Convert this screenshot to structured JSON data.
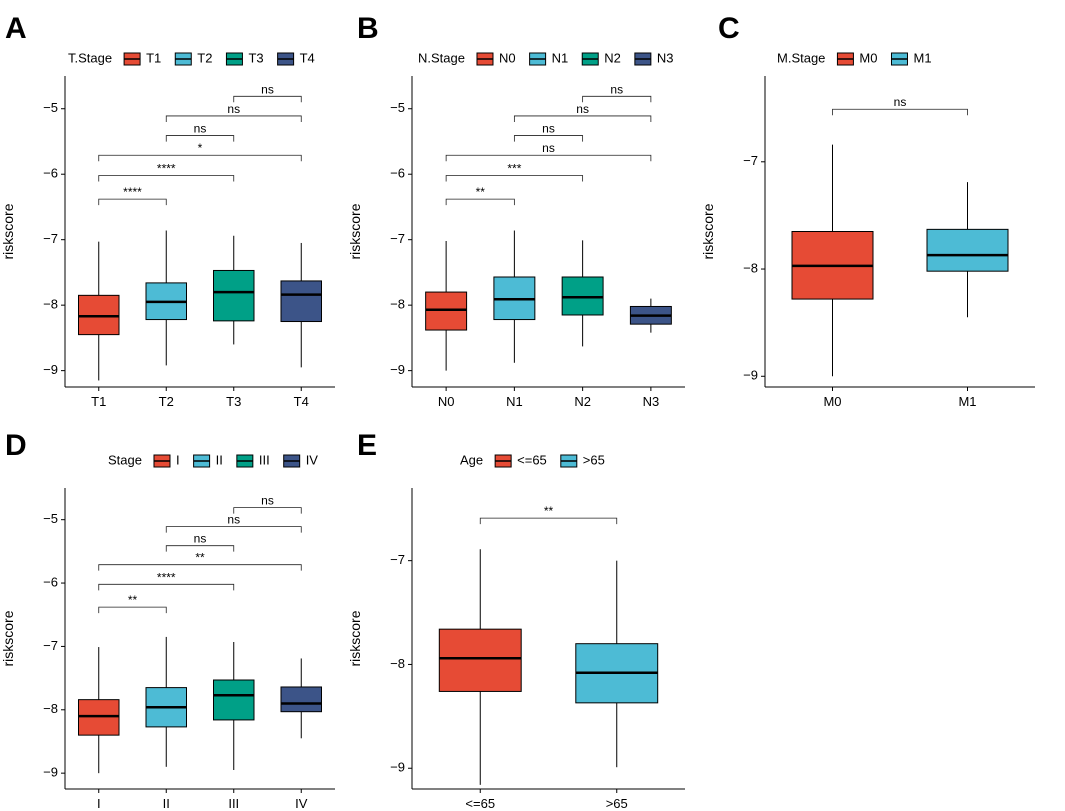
{
  "chart_data": [
    {
      "panel": "A",
      "type": "box",
      "legend_title": "T.Stage",
      "categories": [
        "T1",
        "T2",
        "T3",
        "T4"
      ],
      "colors": [
        "#e64b35",
        "#4dbbd5",
        "#00a087",
        "#3c5488"
      ],
      "ylabel": "riskscore",
      "ylim": [
        -9.25,
        -4.5
      ],
      "yticks": [
        -9,
        -8,
        -7,
        -6,
        -5
      ],
      "boxes": [
        {
          "min": -9.15,
          "q1": -8.45,
          "median": -8.17,
          "q3": -7.85,
          "max": -7.03
        },
        {
          "min": -8.92,
          "q1": -8.22,
          "median": -7.95,
          "q3": -7.66,
          "max": -6.86
        },
        {
          "min": -8.6,
          "q1": -8.24,
          "median": -7.8,
          "q3": -7.47,
          "max": -6.94
        },
        {
          "min": -8.95,
          "q1": -8.25,
          "median": -7.84,
          "q3": -7.63,
          "max": -7.05
        }
      ],
      "comparisons": [
        {
          "from": 2,
          "to": 3,
          "y": -4.81,
          "label": "ns"
        },
        {
          "from": 1,
          "to": 3,
          "y": -5.11,
          "label": "ns"
        },
        {
          "from": 1,
          "to": 2,
          "y": -5.41,
          "label": "ns"
        },
        {
          "from": 0,
          "to": 3,
          "y": -5.71,
          "label": "*"
        },
        {
          "from": 0,
          "to": 2,
          "y": -6.02,
          "label": "****"
        },
        {
          "from": 0,
          "to": 1,
          "y": -6.38,
          "label": "****"
        }
      ]
    },
    {
      "panel": "B",
      "type": "box",
      "legend_title": "N.Stage",
      "categories": [
        "N0",
        "N1",
        "N2",
        "N3"
      ],
      "colors": [
        "#e64b35",
        "#4dbbd5",
        "#00a087",
        "#3c5488"
      ],
      "ylabel": "riskscore",
      "ylim": [
        -9.25,
        -4.5
      ],
      "yticks": [
        -9,
        -8,
        -7,
        -6,
        -5
      ],
      "boxes": [
        {
          "min": -9.0,
          "q1": -8.38,
          "median": -8.07,
          "q3": -7.8,
          "max": -7.02
        },
        {
          "min": -8.88,
          "q1": -8.22,
          "median": -7.91,
          "q3": -7.57,
          "max": -6.86
        },
        {
          "min": -8.63,
          "q1": -8.15,
          "median": -7.88,
          "q3": -7.57,
          "max": -7.01
        },
        {
          "min": -8.42,
          "q1": -8.29,
          "median": -8.16,
          "q3": -8.02,
          "max": -7.9
        }
      ],
      "comparisons": [
        {
          "from": 2,
          "to": 3,
          "y": -4.81,
          "label": "ns"
        },
        {
          "from": 1,
          "to": 3,
          "y": -5.11,
          "label": "ns"
        },
        {
          "from": 1,
          "to": 2,
          "y": -5.41,
          "label": "ns"
        },
        {
          "from": 0,
          "to": 3,
          "y": -5.71,
          "label": "ns"
        },
        {
          "from": 0,
          "to": 2,
          "y": -6.02,
          "label": "***"
        },
        {
          "from": 0,
          "to": 1,
          "y": -6.38,
          "label": "**"
        }
      ]
    },
    {
      "panel": "C",
      "type": "box",
      "legend_title": "M.Stage",
      "categories": [
        "M0",
        "M1"
      ],
      "colors": [
        "#e64b35",
        "#4dbbd5"
      ],
      "ylabel": "riskscore",
      "ylim": [
        -9.1,
        -6.2
      ],
      "yticks": [
        -9,
        -8,
        -7
      ],
      "boxes": [
        {
          "min": -9.0,
          "q1": -8.28,
          "median": -7.97,
          "q3": -7.65,
          "max": -6.84
        },
        {
          "min": -8.45,
          "q1": -8.02,
          "median": -7.87,
          "q3": -7.63,
          "max": -7.19
        }
      ],
      "comparisons": [
        {
          "from": 0,
          "to": 1,
          "y": -6.51,
          "label": "ns"
        }
      ]
    },
    {
      "panel": "D",
      "type": "box",
      "legend_title": "Stage",
      "categories": [
        "I",
        "II",
        "III",
        "IV"
      ],
      "colors": [
        "#e64b35",
        "#4dbbd5",
        "#00a087",
        "#3c5488"
      ],
      "ylabel": "riskscore",
      "ylim": [
        -9.25,
        -4.5
      ],
      "yticks": [
        -9,
        -8,
        -7,
        -6,
        -5
      ],
      "boxes": [
        {
          "min": -9.0,
          "q1": -8.4,
          "median": -8.1,
          "q3": -7.84,
          "max": -7.01
        },
        {
          "min": -8.9,
          "q1": -8.27,
          "median": -7.96,
          "q3": -7.65,
          "max": -6.85
        },
        {
          "min": -8.95,
          "q1": -8.16,
          "median": -7.77,
          "q3": -7.53,
          "max": -6.93
        },
        {
          "min": -8.45,
          "q1": -8.03,
          "median": -7.9,
          "q3": -7.64,
          "max": -7.19
        }
      ],
      "comparisons": [
        {
          "from": 2,
          "to": 3,
          "y": -4.81,
          "label": "ns"
        },
        {
          "from": 1,
          "to": 3,
          "y": -5.11,
          "label": "ns"
        },
        {
          "from": 1,
          "to": 2,
          "y": -5.41,
          "label": "ns"
        },
        {
          "from": 0,
          "to": 3,
          "y": -5.71,
          "label": "**"
        },
        {
          "from": 0,
          "to": 2,
          "y": -6.02,
          "label": "****"
        },
        {
          "from": 0,
          "to": 1,
          "y": -6.38,
          "label": "**"
        }
      ]
    },
    {
      "panel": "E",
      "type": "box",
      "legend_title": "Age",
      "categories": [
        "<=65",
        ">65"
      ],
      "colors": [
        "#e64b35",
        "#4dbbd5"
      ],
      "ylabel": "riskscore",
      "ylim": [
        -9.2,
        -6.3
      ],
      "yticks": [
        -9,
        -8,
        -7
      ],
      "boxes": [
        {
          "min": -9.16,
          "q1": -8.26,
          "median": -7.94,
          "q3": -7.66,
          "max": -6.89
        },
        {
          "min": -8.99,
          "q1": -8.37,
          "median": -8.08,
          "q3": -7.8,
          "max": -7.0
        }
      ],
      "comparisons": [
        {
          "from": 0,
          "to": 1,
          "y": -6.59,
          "label": "**"
        }
      ]
    }
  ]
}
